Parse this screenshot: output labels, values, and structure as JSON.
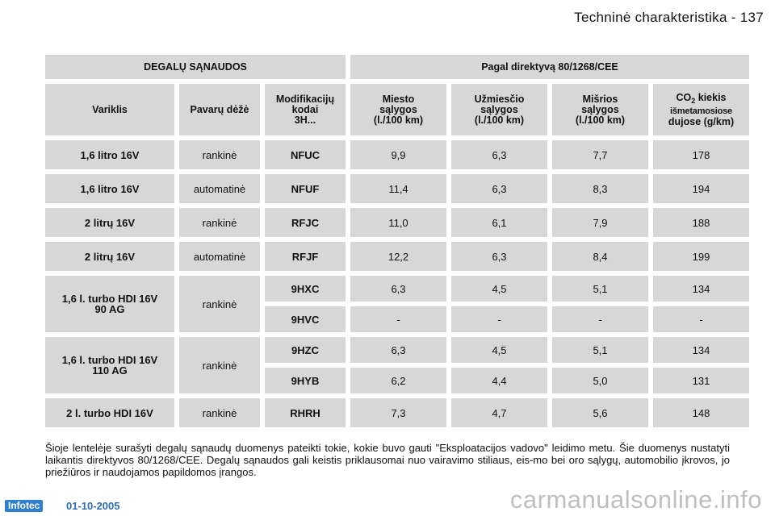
{
  "header": {
    "title": "Techninė charakteristika - 137"
  },
  "table": {
    "group_left": "DEGALŲ SĄNAUDOS",
    "group_right": "Pagal direktyvą 80/1268/CEE",
    "col_engine": "Variklis",
    "col_gearbox": "Pavarų dėžė",
    "col_mod_l1": "Modifikacijų",
    "col_mod_l2": "kodai",
    "col_mod_l3": "3H...",
    "col_city_l1": "Miesto",
    "col_city_l2": "sąlygos",
    "col_city_l3": "(l./100 km)",
    "col_ext_l1": "Užmiesčio",
    "col_ext_l2": "sąlygos",
    "col_ext_l3": "(l./100 km)",
    "col_mix_l1": "Mišrios",
    "col_mix_l2": "sąlygos",
    "col_mix_l3": "(l./100 km)",
    "col_co2_a": "CO",
    "col_co2_sub": "2",
    "col_co2_b": " kiekis",
    "col_co2_l2": "išmetamosiose",
    "col_co2_l3": "dujose (g/km)",
    "rows": [
      {
        "engine": "1,6 litro 16V",
        "gearbox": "rankinė",
        "code": "NFUC",
        "city": "9,9",
        "extra": "6,3",
        "mixed": "7,7",
        "co2": "178"
      },
      {
        "engine": "1,6 litro 16V",
        "gearbox": "automatinė",
        "code": "NFUF",
        "city": "11,4",
        "extra": "6,3",
        "mixed": "8,3",
        "co2": "194"
      },
      {
        "engine": "2 litrų 16V",
        "gearbox": "rankinė",
        "code": "RFJC",
        "city": "11,0",
        "extra": "6,1",
        "mixed": "7,9",
        "co2": "188"
      },
      {
        "engine": "2 litrų 16V",
        "gearbox": "automatinė",
        "code": "RFJF",
        "city": "12,2",
        "extra": "6,3",
        "mixed": "8,4",
        "co2": "199"
      },
      {
        "engine_l1": "1,6 l. turbo HDI 16V",
        "engine_l2": "90 AG",
        "gearbox": "rankinė",
        "sub": [
          {
            "code": "9HXC",
            "city": "6,3",
            "extra": "4,5",
            "mixed": "5,1",
            "co2": "134"
          },
          {
            "code": "9HVC",
            "city": "-",
            "extra": "-",
            "mixed": "-",
            "co2": "-"
          }
        ]
      },
      {
        "engine_l1": "1,6 l. turbo HDI 16V",
        "engine_l2": "110 AG",
        "gearbox": "rankinė",
        "sub": [
          {
            "code": "9HZC",
            "city": "6,3",
            "extra": "4,5",
            "mixed": "5,1",
            "co2": "134"
          },
          {
            "code": "9HYB",
            "city": "6,2",
            "extra": "4,4",
            "mixed": "5,0",
            "co2": "131"
          }
        ]
      },
      {
        "engine": "2 l. turbo HDI 16V",
        "gearbox": "rankinė",
        "code": "RHRH",
        "city": "7,3",
        "extra": "4,7",
        "mixed": "5,6",
        "co2": "148"
      }
    ]
  },
  "note": "Šioje lentelėje surašyti degalų sąnaudų duomenys pateikti tokie, kokie buvo gauti \"Eksploatacijos vadovo\" leidimo metu. Šie duomenys nustatyti laikantis direktyvos 80/1268/CEE. Degalų sąnaudos gali keistis priklausomai nuo vairavimo stiliaus, eis-mo bei oro sąlygų, automobilio įkrovos, jo priežiūros ir naudojamos papildomos įrangos.",
  "footer": {
    "logo": "Infotec",
    "date": "01-10-2005"
  },
  "watermark": "carmanualsonline.info"
}
